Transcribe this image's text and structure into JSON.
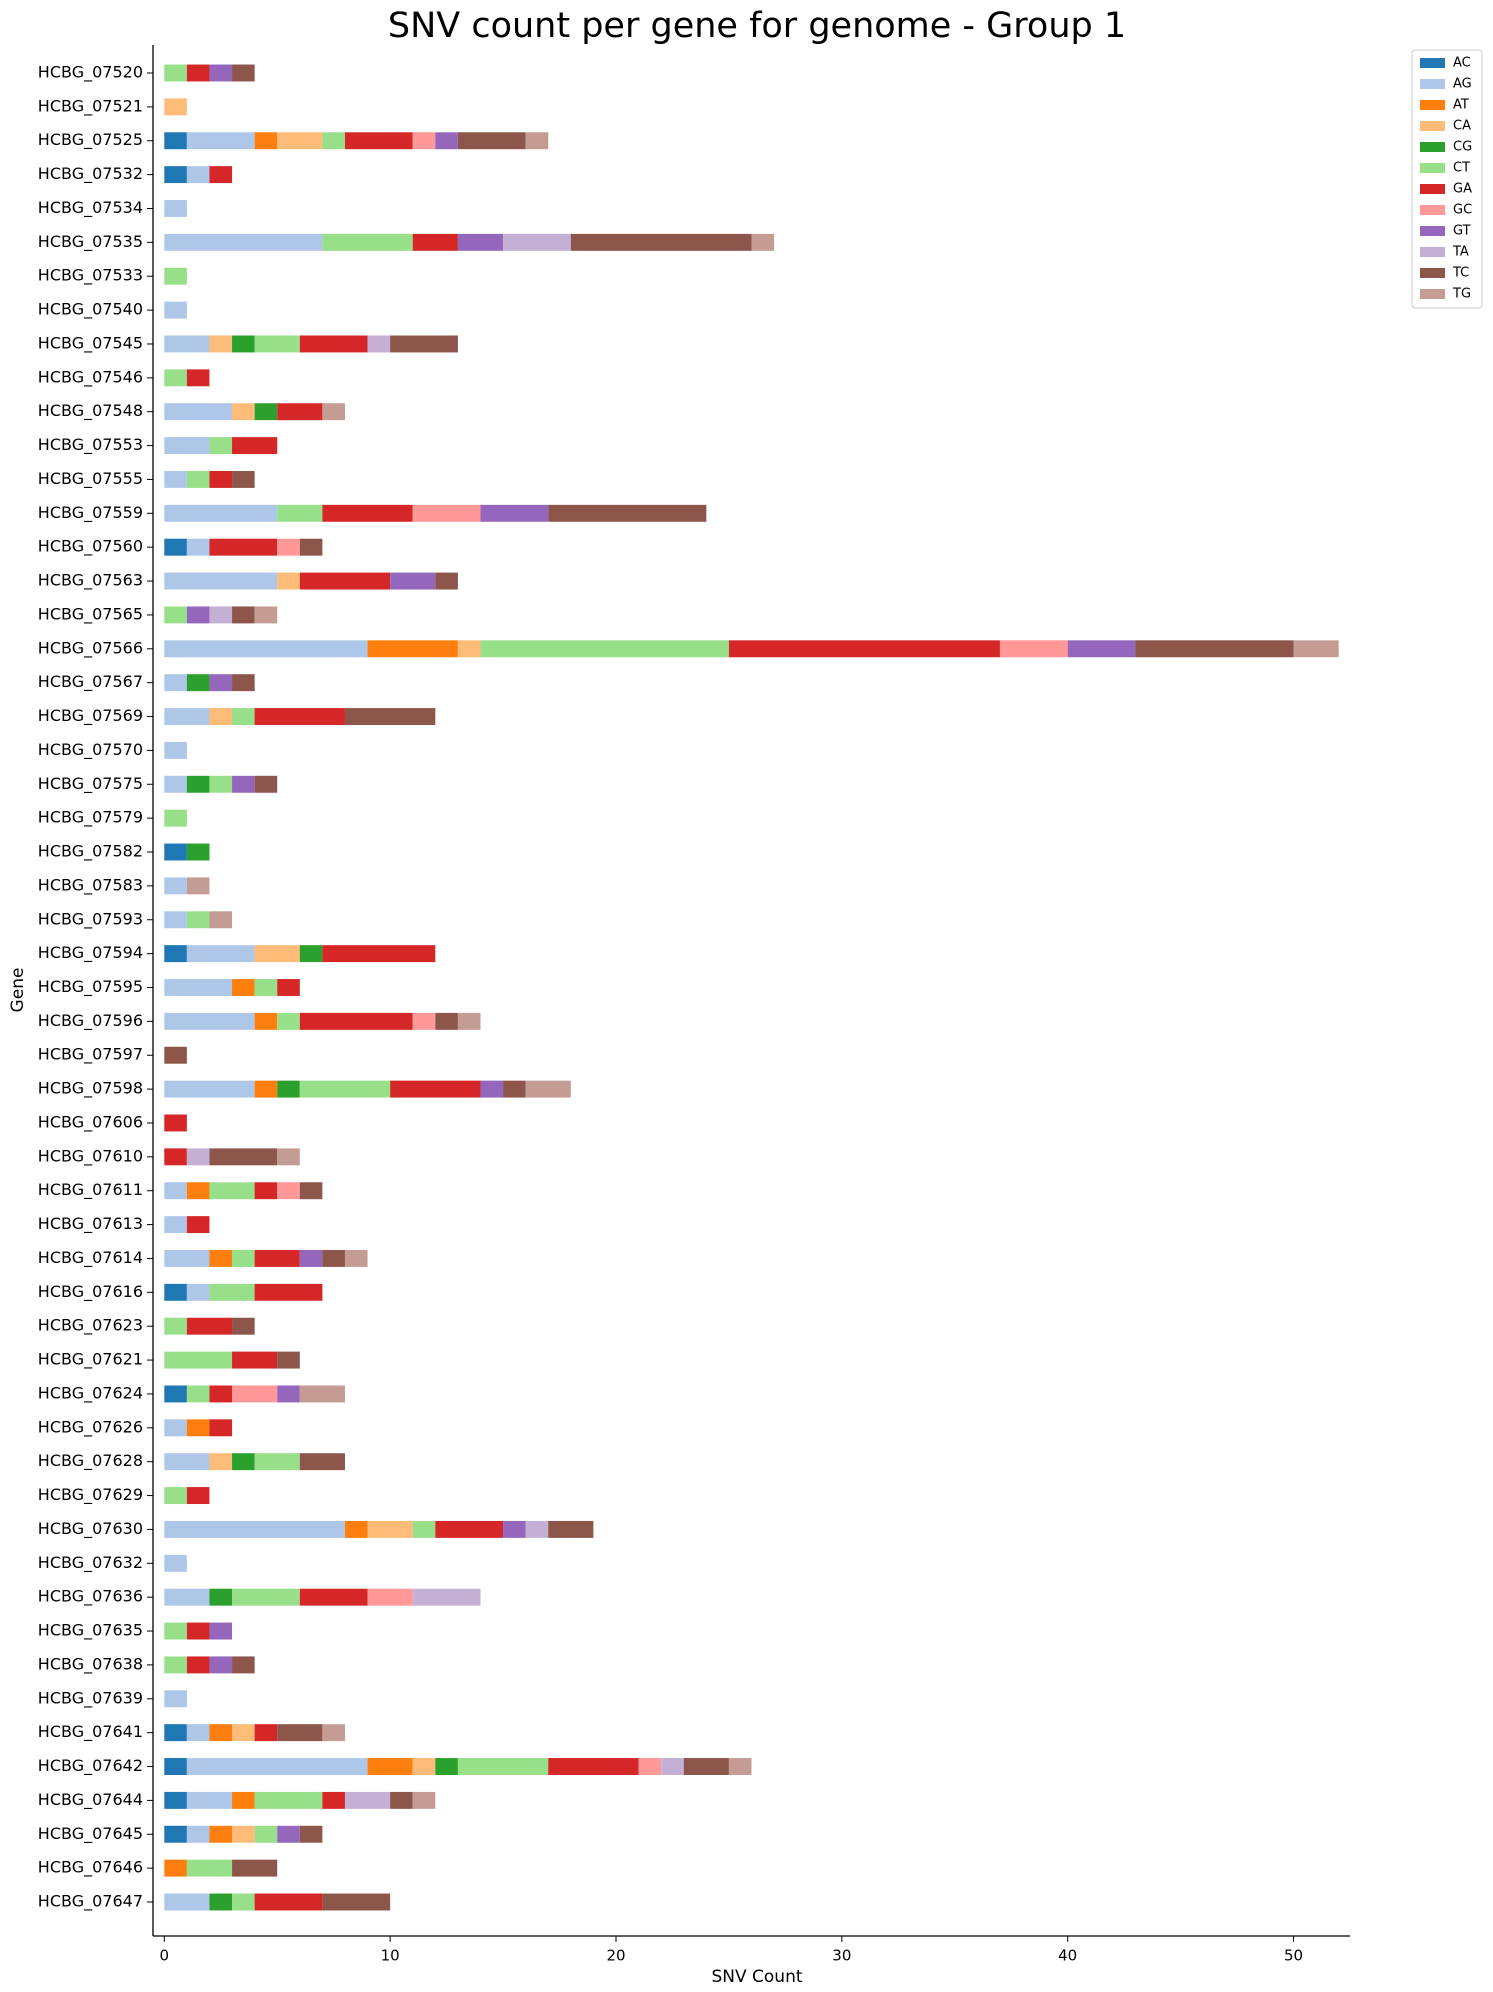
{
  "chart_data": {
    "type": "stacked-barh",
    "title": "SNV count per gene for genome - Group 1",
    "x_label": "SNV Count",
    "y_label": "Gene",
    "categories": [
      "HCBG_07520",
      "HCBG_07521",
      "HCBG_07525",
      "HCBG_07532",
      "HCBG_07534",
      "HCBG_07535",
      "HCBG_07533",
      "HCBG_07540",
      "HCBG_07545",
      "HCBG_07546",
      "HCBG_07548",
      "HCBG_07553",
      "HCBG_07555",
      "HCBG_07559",
      "HCBG_07560",
      "HCBG_07563",
      "HCBG_07565",
      "HCBG_07566",
      "HCBG_07567",
      "HCBG_07569",
      "HCBG_07570",
      "HCBG_07575",
      "HCBG_07579",
      "HCBG_07582",
      "HCBG_07583",
      "HCBG_07593",
      "HCBG_07594",
      "HCBG_07595",
      "HCBG_07596",
      "HCBG_07597",
      "HCBG_07598",
      "HCBG_07606",
      "HCBG_07610",
      "HCBG_07611",
      "HCBG_07613",
      "HCBG_07614",
      "HCBG_07616",
      "HCBG_07623",
      "HCBG_07621",
      "HCBG_07624",
      "HCBG_07626",
      "HCBG_07628",
      "HCBG_07629",
      "HCBG_07630",
      "HCBG_07632",
      "HCBG_07636",
      "HCBG_07635",
      "HCBG_07638",
      "HCBG_07639",
      "HCBG_07641",
      "HCBG_07642",
      "HCBG_07644",
      "HCBG_07645",
      "HCBG_07646",
      "HCBG_07647"
    ],
    "series": [
      {
        "name": "AC",
        "color": "#1f77b4",
        "values": [
          0,
          0,
          1,
          1,
          0,
          0,
          0,
          0,
          0,
          0,
          0,
          0,
          0,
          0,
          1,
          0,
          0,
          0,
          0,
          0,
          0,
          0,
          0,
          1,
          0,
          0,
          1,
          0,
          0,
          0,
          0,
          0,
          0,
          0,
          0,
          0,
          1,
          0,
          0,
          1,
          0,
          0,
          0,
          0,
          0,
          0,
          0,
          0,
          0,
          1,
          1,
          1,
          1,
          0,
          0
        ]
      },
      {
        "name": "AG",
        "color": "#aec7e8",
        "values": [
          0,
          0,
          3,
          1,
          1,
          7,
          0,
          1,
          2,
          0,
          3,
          2,
          1,
          5,
          1,
          5,
          0,
          9,
          1,
          2,
          1,
          1,
          0,
          0,
          1,
          1,
          3,
          3,
          4,
          0,
          4,
          0,
          0,
          1,
          1,
          2,
          1,
          0,
          0,
          0,
          1,
          2,
          0,
          8,
          1,
          2,
          0,
          0,
          1,
          1,
          8,
          2,
          1,
          0,
          2
        ]
      },
      {
        "name": "AT",
        "color": "#ff7f0e",
        "values": [
          0,
          0,
          1,
          0,
          0,
          0,
          0,
          0,
          0,
          0,
          0,
          0,
          0,
          0,
          0,
          0,
          0,
          4,
          0,
          0,
          0,
          0,
          0,
          0,
          0,
          0,
          0,
          1,
          1,
          0,
          1,
          0,
          0,
          1,
          0,
          1,
          0,
          0,
          0,
          0,
          1,
          0,
          0,
          1,
          0,
          0,
          0,
          0,
          0,
          1,
          2,
          1,
          1,
          1,
          0
        ]
      },
      {
        "name": "CA",
        "color": "#ffbb78",
        "values": [
          0,
          1,
          2,
          0,
          0,
          0,
          0,
          0,
          1,
          0,
          1,
          0,
          0,
          0,
          0,
          1,
          0,
          1,
          0,
          1,
          0,
          0,
          0,
          0,
          0,
          0,
          2,
          0,
          0,
          0,
          0,
          0,
          0,
          0,
          0,
          0,
          0,
          0,
          0,
          0,
          0,
          1,
          0,
          2,
          0,
          0,
          0,
          0,
          0,
          1,
          1,
          0,
          1,
          0,
          0
        ]
      },
      {
        "name": "CG",
        "color": "#2ca02c",
        "values": [
          0,
          0,
          0,
          0,
          0,
          0,
          0,
          0,
          1,
          0,
          1,
          0,
          0,
          0,
          0,
          0,
          0,
          0,
          1,
          0,
          0,
          1,
          0,
          1,
          0,
          0,
          1,
          0,
          0,
          0,
          1,
          0,
          0,
          0,
          0,
          0,
          0,
          0,
          0,
          0,
          0,
          1,
          0,
          0,
          0,
          1,
          0,
          0,
          0,
          0,
          1,
          0,
          0,
          0,
          1
        ]
      },
      {
        "name": "CT",
        "color": "#98df8a",
        "values": [
          1,
          0,
          1,
          0,
          0,
          4,
          1,
          0,
          2,
          1,
          0,
          1,
          1,
          2,
          0,
          0,
          1,
          11,
          0,
          1,
          0,
          1,
          1,
          0,
          0,
          1,
          0,
          1,
          1,
          0,
          4,
          0,
          0,
          2,
          0,
          1,
          2,
          1,
          3,
          1,
          0,
          2,
          1,
          1,
          0,
          3,
          1,
          1,
          0,
          0,
          4,
          3,
          1,
          2,
          1
        ]
      },
      {
        "name": "GA",
        "color": "#d62728",
        "values": [
          1,
          0,
          3,
          1,
          0,
          2,
          0,
          0,
          3,
          1,
          2,
          2,
          1,
          4,
          3,
          4,
          0,
          12,
          0,
          4,
          0,
          0,
          0,
          0,
          0,
          0,
          5,
          1,
          5,
          0,
          4,
          1,
          1,
          1,
          1,
          2,
          3,
          2,
          2,
          1,
          1,
          0,
          1,
          3,
          0,
          3,
          1,
          1,
          0,
          1,
          4,
          1,
          0,
          0,
          3
        ]
      },
      {
        "name": "GC",
        "color": "#ff9896",
        "values": [
          0,
          0,
          1,
          0,
          0,
          0,
          0,
          0,
          0,
          0,
          0,
          0,
          0,
          3,
          1,
          0,
          0,
          3,
          0,
          0,
          0,
          0,
          0,
          0,
          0,
          0,
          0,
          0,
          1,
          0,
          0,
          0,
          0,
          1,
          0,
          0,
          0,
          0,
          0,
          2,
          0,
          0,
          0,
          0,
          0,
          2,
          0,
          0,
          0,
          0,
          1,
          0,
          0,
          0,
          0
        ]
      },
      {
        "name": "GT",
        "color": "#9467bd",
        "values": [
          1,
          0,
          1,
          0,
          0,
          2,
          0,
          0,
          0,
          0,
          0,
          0,
          0,
          3,
          0,
          2,
          1,
          3,
          1,
          0,
          0,
          1,
          0,
          0,
          0,
          0,
          0,
          0,
          0,
          0,
          1,
          0,
          0,
          0,
          0,
          1,
          0,
          0,
          0,
          1,
          0,
          0,
          0,
          1,
          0,
          0,
          1,
          1,
          0,
          0,
          0,
          0,
          1,
          0,
          0
        ]
      },
      {
        "name": "TA",
        "color": "#c5b0d5",
        "values": [
          0,
          0,
          0,
          0,
          0,
          3,
          0,
          0,
          1,
          0,
          0,
          0,
          0,
          0,
          0,
          0,
          1,
          0,
          0,
          0,
          0,
          0,
          0,
          0,
          0,
          0,
          0,
          0,
          0,
          0,
          0,
          0,
          1,
          0,
          0,
          0,
          0,
          0,
          0,
          0,
          0,
          0,
          0,
          1,
          0,
          3,
          0,
          0,
          0,
          0,
          1,
          2,
          0,
          0,
          0
        ]
      },
      {
        "name": "TC",
        "color": "#8c564b",
        "values": [
          1,
          0,
          3,
          0,
          0,
          8,
          0,
          0,
          3,
          0,
          0,
          0,
          1,
          7,
          1,
          1,
          1,
          7,
          1,
          4,
          0,
          1,
          0,
          0,
          0,
          0,
          0,
          0,
          1,
          1,
          1,
          0,
          3,
          1,
          0,
          1,
          0,
          1,
          1,
          0,
          0,
          2,
          0,
          2,
          0,
          0,
          0,
          1,
          0,
          2,
          2,
          1,
          1,
          2,
          3
        ]
      },
      {
        "name": "TG",
        "color": "#c49c94",
        "values": [
          0,
          0,
          1,
          0,
          0,
          1,
          0,
          0,
          0,
          0,
          1,
          0,
          0,
          0,
          0,
          0,
          1,
          2,
          0,
          0,
          0,
          0,
          0,
          0,
          1,
          1,
          0,
          0,
          1,
          0,
          2,
          0,
          1,
          0,
          0,
          1,
          0,
          0,
          0,
          2,
          0,
          0,
          0,
          0,
          0,
          0,
          0,
          0,
          0,
          1,
          1,
          1,
          0,
          0,
          0
        ]
      }
    ],
    "xlim": [
      -0.5,
      52.5
    ],
    "xticks": [
      0,
      10,
      20,
      30,
      40,
      50
    ],
    "legend": "upper-right-outside"
  }
}
